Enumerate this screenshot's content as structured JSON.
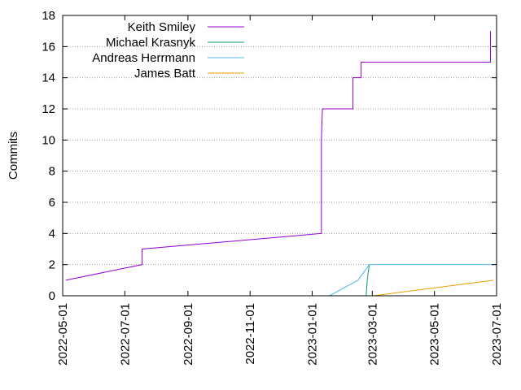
{
  "chart_data": {
    "type": "line",
    "title": "",
    "xlabel": "",
    "ylabel": "Commits",
    "x_axis_type": "date",
    "xlim": [
      "2022-05-01",
      "2023-07-01"
    ],
    "ylim": [
      0,
      18
    ],
    "y_ticks": [
      0,
      2,
      4,
      6,
      8,
      10,
      12,
      14,
      16,
      18
    ],
    "x_ticks": [
      "2022-05-01",
      "2022-07-01",
      "2022-09-01",
      "2022-11-01",
      "2023-01-01",
      "2023-03-01",
      "2023-05-01",
      "2023-07-01"
    ],
    "grid": "horizontal",
    "legend_position": "top-left",
    "series": [
      {
        "name": "Keith Smiley",
        "color": "#9400d3",
        "points": [
          [
            "2022-05-04",
            1
          ],
          [
            "2022-07-18",
            2
          ],
          [
            "2022-07-18",
            3
          ],
          [
            "2023-01-10",
            4
          ],
          [
            "2023-01-10",
            10
          ],
          [
            "2023-01-11",
            12
          ],
          [
            "2023-02-10",
            12
          ],
          [
            "2023-02-10",
            14
          ],
          [
            "2023-02-18",
            14
          ],
          [
            "2023-02-18",
            15
          ],
          [
            "2023-06-25",
            15
          ],
          [
            "2023-06-25",
            17
          ]
        ]
      },
      {
        "name": "Michael Krasnyk",
        "color": "#009e73",
        "points": [
          [
            "2023-02-23",
            0
          ],
          [
            "2023-02-24",
            1
          ],
          [
            "2023-02-26",
            2
          ]
        ]
      },
      {
        "name": "Andreas Herrmann",
        "color": "#56b4e9",
        "points": [
          [
            "2023-01-18",
            0
          ],
          [
            "2023-02-15",
            1
          ],
          [
            "2023-02-26",
            2
          ],
          [
            "2023-06-28",
            2
          ]
        ]
      },
      {
        "name": "James Batt",
        "color": "#e69f00",
        "points": [
          [
            "2023-03-02",
            0
          ],
          [
            "2023-06-28",
            1
          ]
        ]
      }
    ]
  }
}
